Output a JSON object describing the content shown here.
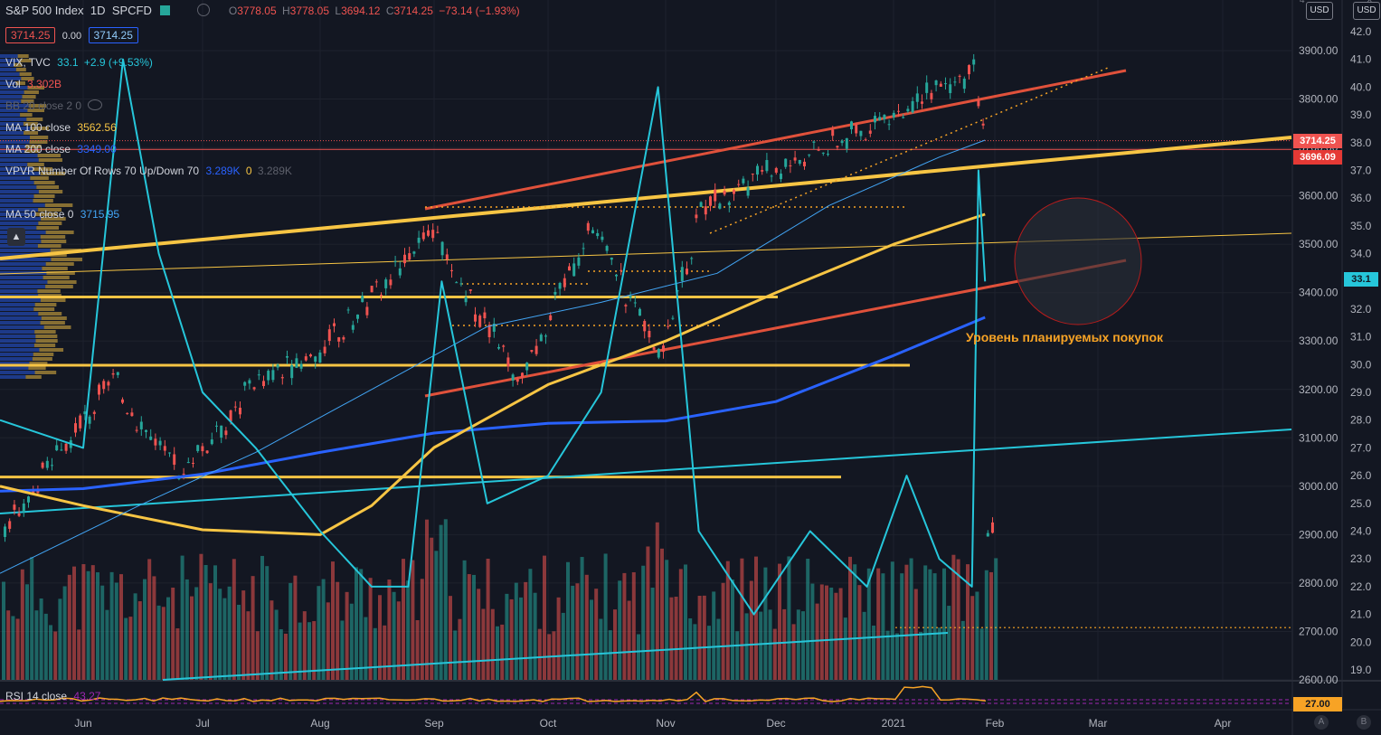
{
  "header": {
    "symbol": "S&P 500 Index",
    "interval": "1D",
    "source": "SPCFD",
    "ohlc_o_label": "O",
    "ohlc_o": "3778.05",
    "ohlc_h_label": "H",
    "ohlc_h": "3778.05",
    "ohlc_l_label": "L",
    "ohlc_l": "3694.12",
    "ohlc_c_label": "C",
    "ohlc_c": "3714.25",
    "ohlc_change": "−73.14 (−1.93%)",
    "bid": "3714.25",
    "spread": "0.00",
    "ask": "3714.25"
  },
  "indicators": [
    {
      "name": "VIX, TVC",
      "value": "33.1",
      "extra": "+2.9 (+9.53%)",
      "color": "#26c6da"
    },
    {
      "name": "Vol",
      "value": "3.302B",
      "color": "#ef5350"
    },
    {
      "name": "BB 20 close 2 0",
      "value": "",
      "color": "#787b86"
    },
    {
      "name": "MA 100 close",
      "value": "3562.56",
      "color": "#f7c544"
    },
    {
      "name": "MA 200 close",
      "value": "3349.00",
      "color": "#2962ff"
    },
    {
      "name": "VPVR Number Of Rows 70 Up/Down 70",
      "value": "3.289K",
      "extra": "0",
      "extra2": "3.289K",
      "color": "#2962ff"
    },
    {
      "name": "MA 50 close 0",
      "value": "3715.95",
      "color": "#42a5f5"
    }
  ],
  "rsi": {
    "label": "RSI 14 close",
    "value": "43.27",
    "axis_tag": "27.00"
  },
  "annotation": {
    "text": "Уровень планируемых покупок",
    "color": "#f7a325"
  },
  "price_tags": {
    "last": "3714.25",
    "level": "3696.09",
    "vix": "33.1"
  },
  "currency": "USD",
  "currency_symbol": "4",
  "right_top_glyph": "Х",
  "bottom_right": {
    "auto": "A",
    "log": "B"
  },
  "chart_data": {
    "type": "line",
    "title": "",
    "xlabel": "",
    "ylabel": "",
    "x_ticks": [
      "Jun",
      "Jul",
      "Aug",
      "Sep",
      "Oct",
      "Nov",
      "Dec",
      "2021",
      "Feb",
      "Mar",
      "Apr"
    ],
    "price_axis": {
      "ticks": [
        3900,
        3800,
        3700,
        3600,
        3500,
        3400,
        3300,
        3200,
        3100,
        3000,
        2900,
        2800,
        2700,
        2600
      ],
      "tick_labels": [
        "3900.00",
        "3800.00",
        "3700.00",
        "3600.00",
        "3500.00",
        "3400.00",
        "3300.00",
        "3200.00",
        "3100.00",
        "3000.00",
        "2900.00",
        "2800.00",
        "2700.00",
        "2600.00"
      ],
      "ylim": [
        2600,
        3980
      ]
    },
    "vix_axis": {
      "ticks": [
        42,
        41,
        40,
        39,
        38,
        37,
        36,
        35,
        34,
        33,
        32,
        31,
        30,
        29,
        28,
        27,
        26,
        25,
        24,
        23,
        22,
        21,
        20,
        19
      ],
      "tick_labels": [
        "42.0",
        "41.0",
        "40.0",
        "39.0",
        "38.0",
        "37.0",
        "36.0",
        "35.0",
        "34.0",
        "33.0",
        "32.0",
        "31.0",
        "30.0",
        "29.0",
        "28.0",
        "27.0",
        "26.0",
        "25.0",
        "24.0",
        "23.0",
        "22.0",
        "21.0",
        "20.0",
        "19.0"
      ]
    },
    "series": [
      {
        "name": "MA 200 close",
        "color": "#2962ff",
        "x": [
          "2020-05-15",
          "2020-06-01",
          "2020-07-01",
          "2020-08-01",
          "2020-09-01",
          "2020-10-01",
          "2020-11-01",
          "2020-12-01",
          "2021-01-01",
          "2021-01-29"
        ],
        "values": [
          2990,
          2995,
          3025,
          3070,
          3110,
          3130,
          3135,
          3175,
          3270,
          3349
        ]
      },
      {
        "name": "MA 100 close",
        "color": "#f7c544",
        "x": [
          "2020-05-15",
          "2020-06-01",
          "2020-07-01",
          "2020-08-01",
          "2020-08-15",
          "2020-09-01",
          "2020-10-01",
          "2020-11-01",
          "2020-12-01",
          "2021-01-01",
          "2021-01-29"
        ],
        "values": [
          3000,
          2960,
          2910,
          2900,
          2960,
          3080,
          3210,
          3300,
          3400,
          3500,
          3562
        ]
      },
      {
        "name": "MA 50 close 0",
        "color": "#42a5f5",
        "x": [
          "2020-05-15",
          "2020-06-15",
          "2020-07-15",
          "2020-08-15",
          "2020-09-15",
          "2020-10-15",
          "2020-11-15",
          "2020-12-15",
          "2021-01-15",
          "2021-01-29"
        ],
        "values": [
          2820,
          2960,
          3070,
          3200,
          3330,
          3380,
          3440,
          3580,
          3680,
          3715
        ]
      },
      {
        "name": "VIX, TVC",
        "color": "#26c6da",
        "x": [
          "2020-05-15",
          "2020-06-01",
          "2020-06-11",
          "2020-06-20",
          "2020-07-01",
          "2020-07-15",
          "2020-08-01",
          "2020-08-15",
          "2020-08-25",
          "2020-09-03",
          "2020-09-15",
          "2020-10-01",
          "2020-10-15",
          "2020-10-30",
          "2020-11-10",
          "2020-11-25",
          "2020-12-10",
          "2020-12-25",
          "2021-01-05",
          "2021-01-15",
          "2021-01-25",
          "2021-01-27",
          "2021-01-29"
        ],
        "values": [
          28,
          27,
          41,
          34,
          29,
          27,
          24,
          22,
          22,
          33,
          25,
          26,
          29,
          40,
          24,
          21,
          24,
          22,
          26,
          23,
          22,
          37,
          33
        ]
      }
    ],
    "ohlc_last": {
      "date": "2021-01-29",
      "open": 3778.05,
      "high": 3778.05,
      "low": 3694.12,
      "close": 3714.25
    }
  }
}
